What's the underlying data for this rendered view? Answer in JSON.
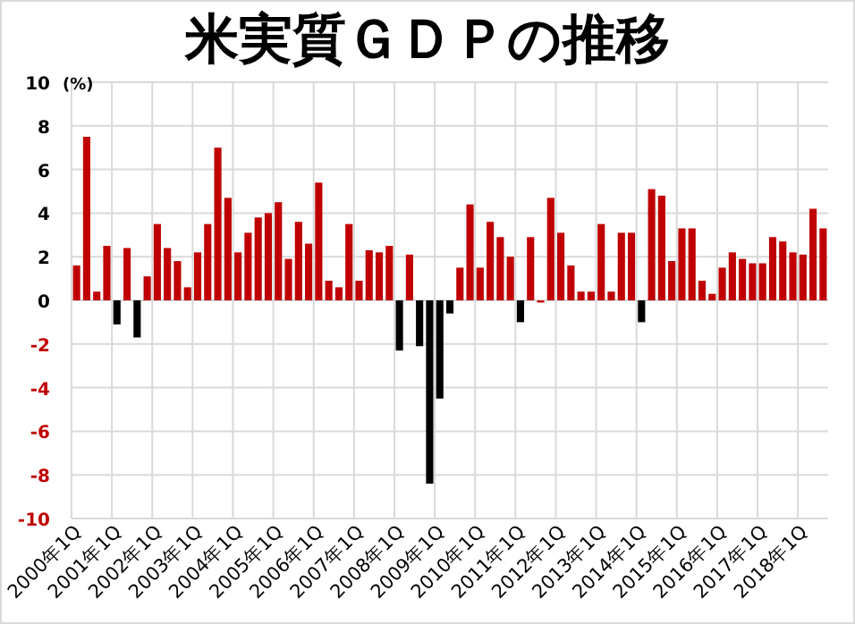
{
  "chart_data": {
    "type": "bar",
    "title": "米実質ＧＤＰの推移",
    "ylabel": "(%)",
    "categories": [
      "2000年1Q",
      null,
      null,
      null,
      "2001年1Q",
      null,
      null,
      null,
      "2002年1Q",
      null,
      null,
      null,
      "2003年1Q",
      null,
      null,
      null,
      "2004年1Q",
      null,
      null,
      null,
      "2005年1Q",
      null,
      null,
      null,
      "2006年1Q",
      null,
      null,
      null,
      "2007年1Q",
      null,
      null,
      null,
      "2008年1Q",
      null,
      null,
      null,
      "2009年1Q",
      null,
      null,
      null,
      "2010年1Q",
      null,
      null,
      null,
      "2011年1Q",
      null,
      null,
      null,
      "2012年1Q",
      null,
      null,
      null,
      "2013年1Q",
      null,
      null,
      null,
      "2014年1Q",
      null,
      null,
      null,
      "2015年1Q",
      null,
      null,
      null,
      "2016年1Q",
      null,
      null,
      null,
      "2017年1Q",
      null,
      null,
      null,
      "2018年1Q",
      null,
      null
    ],
    "values": [
      1.6,
      7.5,
      0.4,
      2.5,
      -1.1,
      2.4,
      -1.7,
      1.1,
      3.5,
      2.4,
      1.8,
      0.6,
      2.2,
      3.5,
      7.0,
      4.7,
      2.2,
      3.1,
      3.8,
      4.0,
      4.5,
      1.9,
      3.6,
      2.6,
      5.4,
      0.9,
      0.6,
      3.5,
      0.9,
      2.3,
      2.2,
      2.5,
      -2.3,
      2.1,
      -2.1,
      -8.4,
      -4.5,
      -0.6,
      1.5,
      4.4,
      1.5,
      3.6,
      2.9,
      2.0,
      -1.0,
      2.9,
      -0.1,
      4.7,
      3.1,
      1.6,
      0.4,
      0.4,
      3.5,
      0.4,
      3.1,
      3.1,
      -1.0,
      5.1,
      4.8,
      1.8,
      3.3,
      3.3,
      0.9,
      0.3,
      1.5,
      2.2,
      1.9,
      1.7,
      1.7,
      2.9,
      2.7,
      2.2,
      2.1,
      4.2,
      3.3
    ],
    "colors": [
      "#c00000",
      "#c00000",
      "#c00000",
      "#c00000",
      "#000000",
      "#c00000",
      "#000000",
      "#c00000",
      "#c00000",
      "#c00000",
      "#c00000",
      "#c00000",
      "#c00000",
      "#c00000",
      "#c00000",
      "#c00000",
      "#c00000",
      "#c00000",
      "#c00000",
      "#c00000",
      "#c00000",
      "#c00000",
      "#c00000",
      "#c00000",
      "#c00000",
      "#c00000",
      "#c00000",
      "#c00000",
      "#c00000",
      "#c00000",
      "#c00000",
      "#c00000",
      "#000000",
      "#c00000",
      "#000000",
      "#000000",
      "#000000",
      "#000000",
      "#c00000",
      "#c00000",
      "#c00000",
      "#c00000",
      "#c00000",
      "#c00000",
      "#000000",
      "#c00000",
      "#c00000",
      "#c00000",
      "#c00000",
      "#c00000",
      "#c00000",
      "#c00000",
      "#c00000",
      "#c00000",
      "#c00000",
      "#c00000",
      "#000000",
      "#c00000",
      "#c00000",
      "#c00000",
      "#c00000",
      "#c00000",
      "#c00000",
      "#c00000",
      "#c00000",
      "#c00000",
      "#c00000",
      "#c00000",
      "#c00000",
      "#c00000",
      "#c00000",
      "#c00000",
      "#c00000",
      "#c00000",
      "#c00000"
    ],
    "ylim": [
      -10,
      10
    ],
    "yticks": [
      -10,
      -8,
      -6,
      -4,
      -2,
      0,
      2,
      4,
      6,
      8,
      10
    ],
    "grid": true
  }
}
